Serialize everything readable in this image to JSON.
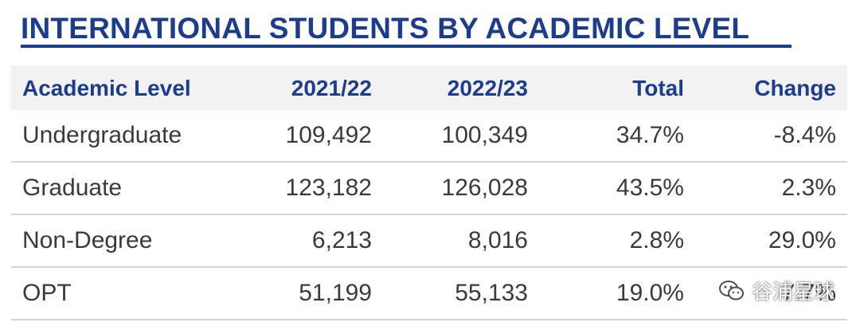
{
  "title": "INTERNATIONAL STUDENTS BY ACADEMIC LEVEL",
  "table": {
    "headers": [
      "Academic Level",
      "2021/22",
      "2022/23",
      "Total",
      "Change"
    ],
    "rows": [
      [
        "Undergraduate",
        "109,492",
        "100,349",
        "34.7%",
        "-8.4%"
      ],
      [
        "Graduate",
        "123,182",
        "126,028",
        "43.5%",
        "2.3%"
      ],
      [
        "Non-Degree",
        "6,213",
        "8,016",
        "2.8%",
        "29.0%"
      ],
      [
        "OPT",
        "51,199",
        "55,133",
        "19.0%",
        "7.7%"
      ]
    ]
  },
  "watermark": {
    "text": "谷浦星球",
    "icon": "wechat-icon"
  }
}
